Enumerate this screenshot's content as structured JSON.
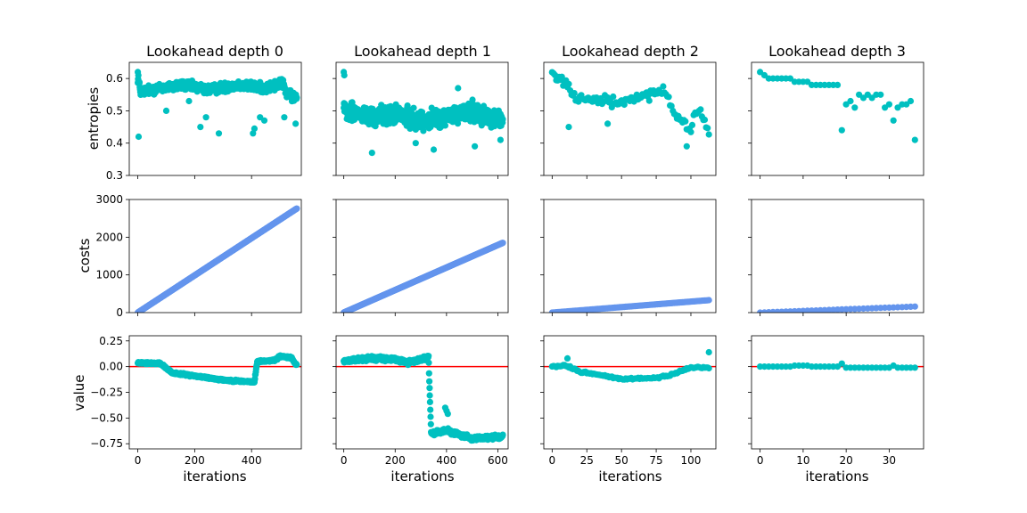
{
  "figure": {
    "column_titles": [
      "Lookahead depth 0",
      "Lookahead depth 1",
      "Lookahead depth 2",
      "Lookahead depth 3"
    ],
    "row_labels": [
      "entropies",
      "costs",
      "value"
    ],
    "xlabel": "iterations"
  },
  "colors": {
    "teal": "#00c0c0",
    "blue": "#6495ed",
    "red": "#ff0000",
    "axis": "#000000"
  },
  "chart_data": {
    "type": "scatter",
    "layout": "3x4 grid, rows share y-axis, columns share x-axis",
    "y_axes": {
      "entropies": {
        "lim": [
          0.3,
          0.65
        ],
        "ticks": [
          0.3,
          0.4,
          0.5,
          0.6
        ],
        "tick_labels": [
          "0.3",
          "0.4",
          "0.5",
          "0.6"
        ]
      },
      "costs": {
        "lim": [
          0,
          3000
        ],
        "ticks": [
          0,
          1000,
          2000,
          3000
        ],
        "tick_labels": [
          "0",
          "1000",
          "2000",
          "3000"
        ]
      },
      "value": {
        "lim": [
          -0.8,
          0.3
        ],
        "ticks": [
          -0.75,
          -0.5,
          -0.25,
          0.0,
          0.25
        ],
        "tick_labels": [
          "−0.75",
          "−0.50",
          "−0.25",
          "0.00",
          "0.25"
        ],
        "reference_line": 0.0
      }
    },
    "columns": [
      {
        "title": "Lookahead depth 0",
        "xlim": [
          -30,
          575
        ],
        "xticks": [
          0,
          200,
          400
        ],
        "xtick_labels": [
          "0",
          "200",
          "400"
        ],
        "n_iterations": 560,
        "entropies_profile": [
          [
            0,
            0.6
          ],
          [
            10,
            0.56
          ],
          [
            80,
            0.57
          ],
          [
            160,
            0.58
          ],
          [
            250,
            0.565
          ],
          [
            350,
            0.58
          ],
          [
            450,
            0.57
          ],
          [
            510,
            0.585
          ],
          [
            525,
            0.55
          ],
          [
            559,
            0.54
          ]
        ],
        "entropy_outliers": [
          [
            0,
            0.62
          ],
          [
            2,
            0.61
          ],
          [
            3,
            0.42
          ],
          [
            100,
            0.5
          ],
          [
            180,
            0.53
          ],
          [
            220,
            0.45
          ],
          [
            240,
            0.48
          ],
          [
            285,
            0.43
          ],
          [
            405,
            0.43
          ],
          [
            410,
            0.445
          ],
          [
            430,
            0.48
          ],
          [
            445,
            0.47
          ],
          [
            515,
            0.48
          ],
          [
            555,
            0.46
          ]
        ],
        "costs_range": [
          0,
          2760
        ],
        "value_profile": [
          [
            0,
            0.04
          ],
          [
            80,
            0.03
          ],
          [
            120,
            -0.06
          ],
          [
            200,
            -0.09
          ],
          [
            300,
            -0.13
          ],
          [
            410,
            -0.15
          ],
          [
            420,
            0.05
          ],
          [
            480,
            0.06
          ],
          [
            500,
            0.1
          ],
          [
            540,
            0.09
          ],
          [
            555,
            0.02
          ]
        ]
      },
      {
        "title": "Lookahead depth 1",
        "xlim": [
          -30,
          640
        ],
        "xticks": [
          0,
          200,
          400,
          600
        ],
        "xtick_labels": [
          "0",
          "200",
          "400",
          "600"
        ],
        "n_iterations": 620,
        "entropies_profile": [
          [
            0,
            0.5
          ],
          [
            100,
            0.48
          ],
          [
            200,
            0.49
          ],
          [
            300,
            0.47
          ],
          [
            400,
            0.48
          ],
          [
            500,
            0.5
          ],
          [
            619,
            0.47
          ]
        ],
        "entropy_outliers": [
          [
            0,
            0.62
          ],
          [
            2,
            0.61
          ],
          [
            110,
            0.37
          ],
          [
            280,
            0.4
          ],
          [
            350,
            0.38
          ],
          [
            445,
            0.57
          ],
          [
            510,
            0.39
          ],
          [
            610,
            0.41
          ]
        ],
        "costs_range": [
          0,
          1850
        ],
        "value_profile": [
          [
            0,
            0.05
          ],
          [
            100,
            0.08
          ],
          [
            200,
            0.07
          ],
          [
            250,
            0.04
          ],
          [
            330,
            0.09
          ],
          [
            340,
            -0.65
          ],
          [
            400,
            -0.62
          ],
          [
            500,
            -0.7
          ],
          [
            619,
            -0.68
          ]
        ],
        "value_outliers": [
          [
            395,
            -0.4
          ],
          [
            400,
            -0.43
          ],
          [
            405,
            -0.46
          ]
        ]
      },
      {
        "title": "Lookahead depth 2",
        "xlim": [
          -6,
          118
        ],
        "xticks": [
          0,
          25,
          50,
          75,
          100
        ],
        "xtick_labels": [
          "0",
          "25",
          "50",
          "75",
          "100"
        ],
        "n_iterations": 114,
        "entropies_profile": [
          [
            0,
            0.615
          ],
          [
            10,
            0.59
          ],
          [
            15,
            0.55
          ],
          [
            30,
            0.53
          ],
          [
            50,
            0.53
          ],
          [
            60,
            0.54
          ],
          [
            75,
            0.55
          ],
          [
            80,
            0.56
          ],
          [
            90,
            0.48
          ],
          [
            100,
            0.44
          ],
          [
            105,
            0.51
          ],
          [
            113,
            0.44
          ]
        ],
        "entropy_outliers": [
          [
            12,
            0.45
          ],
          [
            40,
            0.46
          ],
          [
            97,
            0.39
          ]
        ],
        "costs_range": [
          0,
          330
        ],
        "value_profile": [
          [
            0,
            0.0
          ],
          [
            10,
            0.01
          ],
          [
            20,
            -0.05
          ],
          [
            50,
            -0.12
          ],
          [
            75,
            -0.11
          ],
          [
            90,
            -0.06
          ],
          [
            100,
            -0.01
          ],
          [
            113,
            -0.01
          ]
        ],
        "value_outliers": [
          [
            11,
            0.08
          ],
          [
            113,
            0.14
          ]
        ]
      },
      {
        "title": "Lookahead depth 3",
        "xlim": [
          -2,
          38
        ],
        "xticks": [
          0,
          10,
          20,
          30
        ],
        "xtick_labels": [
          "0",
          "10",
          "20",
          "30"
        ],
        "n_iterations": 37,
        "entropies": [
          0.62,
          0.61,
          0.6,
          0.6,
          0.6,
          0.6,
          0.6,
          0.6,
          0.59,
          0.59,
          0.59,
          0.59,
          0.58,
          0.58,
          0.58,
          0.58,
          0.58,
          0.58,
          0.58,
          0.44,
          0.52,
          0.53,
          0.51,
          0.55,
          0.54,
          0.55,
          0.54,
          0.55,
          0.55,
          0.51,
          0.52,
          0.47,
          0.51,
          0.52,
          0.52,
          0.53,
          0.41
        ],
        "costs_range": [
          0,
          160
        ],
        "value": [
          0.0,
          0.0,
          0.0,
          0.0,
          0.0,
          0.0,
          0.0,
          0.0,
          0.01,
          0.01,
          0.01,
          0.01,
          0.0,
          0.0,
          0.0,
          0.0,
          0.0,
          0.0,
          0.0,
          0.03,
          -0.01,
          -0.01,
          -0.01,
          -0.01,
          -0.01,
          -0.01,
          -0.01,
          -0.01,
          -0.01,
          -0.01,
          -0.01,
          0.01,
          -0.01,
          -0.01,
          -0.01,
          -0.01,
          -0.01
        ]
      }
    ]
  }
}
